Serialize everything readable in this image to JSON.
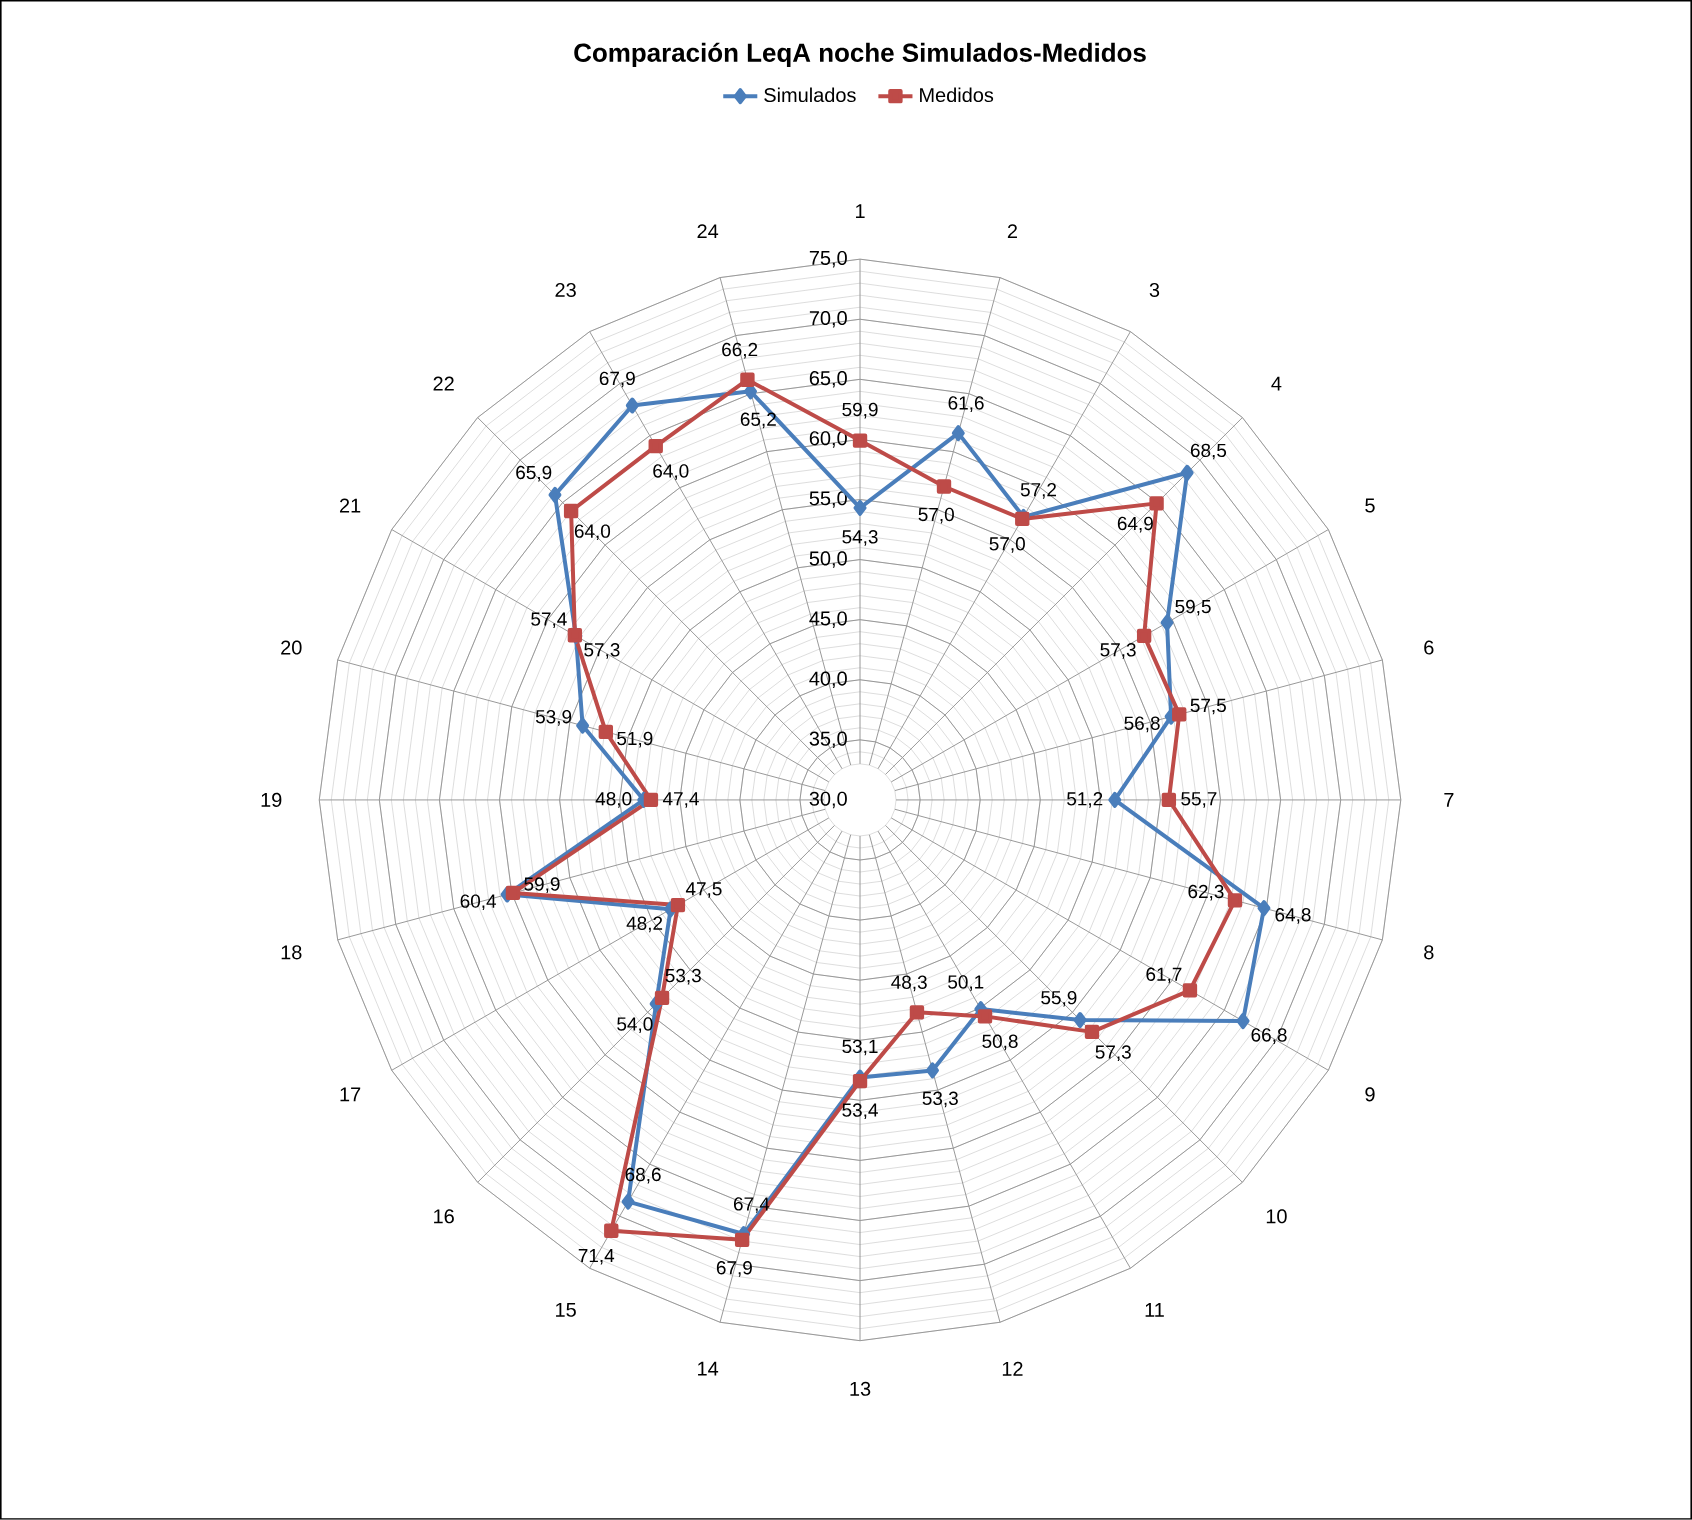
{
  "chart_data": {
    "type": "radar",
    "title": "Comparación LeqA noche Simulados-Medidos",
    "categories": [
      "1",
      "2",
      "3",
      "4",
      "5",
      "6",
      "7",
      "8",
      "9",
      "10",
      "11",
      "12",
      "13",
      "14",
      "15",
      "16",
      "17",
      "18",
      "19",
      "20",
      "21",
      "22",
      "23",
      "24"
    ],
    "ylim": [
      30,
      75
    ],
    "yticks": [
      {
        "value": 30,
        "label": "30,0"
      },
      {
        "value": 35,
        "label": "35,0"
      },
      {
        "value": 40,
        "label": "40,0"
      },
      {
        "value": 45,
        "label": "45,0"
      },
      {
        "value": 50,
        "label": "50,0"
      },
      {
        "value": 55,
        "label": "55,0"
      },
      {
        "value": 60,
        "label": "60,0"
      },
      {
        "value": 65,
        "label": "65,0"
      },
      {
        "value": 70,
        "label": "70,0"
      },
      {
        "value": 75,
        "label": "75,0"
      }
    ],
    "grid": true,
    "legend": "top",
    "series": [
      {
        "name": "Simulados",
        "color": "#4a7ebb",
        "marker": "diamond",
        "values": [
          54.3,
          61.6,
          57.2,
          68.5,
          59.5,
          56.8,
          51.2,
          64.8,
          66.8,
          55.9,
          50.1,
          53.3,
          53.1,
          67.4,
          68.6,
          54.0,
          48.2,
          60.4,
          48.0,
          53.9,
          57.3,
          65.9,
          67.9,
          65.2
        ],
        "value_labels": [
          "54,3",
          "61,6",
          "57,2",
          "68,5",
          "59,5",
          "56,8",
          "51,2",
          "64,8",
          "66,8",
          "55,9",
          "50,1",
          "53,3",
          "53,1",
          "67,4",
          "68,6",
          "54,0",
          "48,2",
          "60,4",
          "48,0",
          "53,9",
          "57,3",
          "65,9",
          "67,9",
          "65,2"
        ]
      },
      {
        "name": "Medidos",
        "color": "#be4b48",
        "marker": "square",
        "values": [
          59.9,
          57.0,
          57.0,
          64.9,
          57.3,
          57.5,
          55.7,
          62.3,
          61.7,
          57.3,
          50.8,
          48.3,
          53.4,
          67.9,
          71.4,
          53.3,
          47.5,
          59.9,
          47.4,
          51.9,
          57.4,
          64.0,
          64.0,
          66.2
        ],
        "value_labels": [
          "59,9",
          "57,0",
          "57,0",
          "64,9",
          "57,3",
          "57,5",
          "55,7",
          "62,3",
          "61,7",
          "57,3",
          "50,8",
          "48,3",
          "53,4",
          "67,9",
          "71,4",
          "53,3",
          "47,5",
          "59,9",
          "47,4",
          "51,9",
          "57,4",
          "64,0",
          "64,0",
          "66,2"
        ]
      }
    ]
  }
}
